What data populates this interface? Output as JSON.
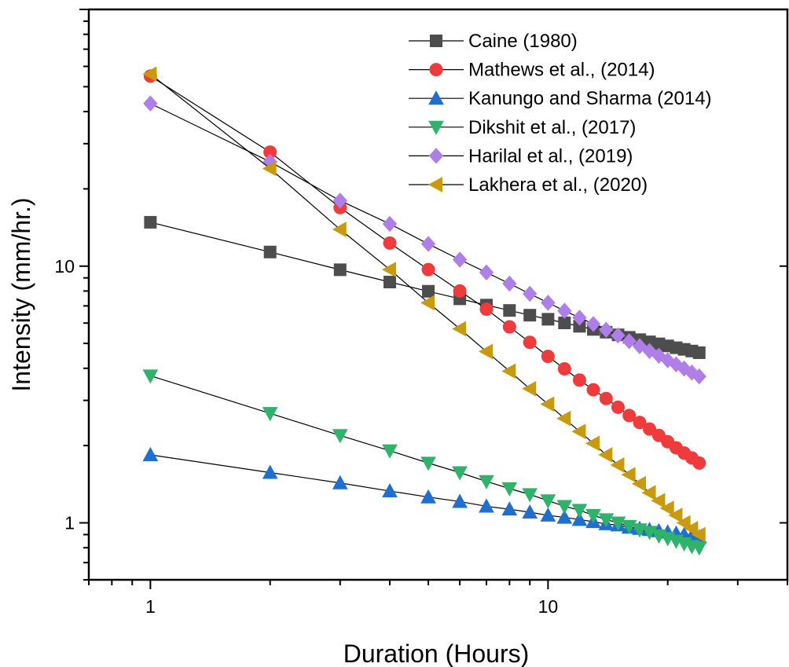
{
  "chart_data": {
    "type": "scatter",
    "xlabel": "Duration (Hours)",
    "ylabel": "Intensity (mm/hr.)",
    "xscale": "log",
    "yscale": "log",
    "xlim": [
      0.7,
      40
    ],
    "ylim": [
      0.6,
      100
    ],
    "xticks": [
      {
        "value": 1,
        "label": "1"
      },
      {
        "value": 10,
        "label": "10"
      }
    ],
    "yticks": [
      {
        "value": 1,
        "label": "1"
      },
      {
        "value": 10,
        "label": "10"
      }
    ],
    "legend_position": "top-right",
    "grid": false,
    "x": [
      1,
      2,
      3,
      4,
      5,
      6,
      7,
      8,
      9,
      10,
      11,
      12,
      13,
      14,
      15,
      16,
      17,
      18,
      19,
      20,
      21,
      22,
      23,
      24
    ],
    "series": [
      {
        "name": "Caine (1980)",
        "marker": "square",
        "color": "#4d4d4d",
        "values": [
          14.82,
          11.35,
          9.68,
          8.67,
          7.98,
          7.46,
          7.05,
          6.72,
          6.44,
          6.21,
          6.01,
          5.83,
          5.67,
          5.53,
          5.4,
          5.28,
          5.17,
          5.07,
          4.98,
          4.89,
          4.81,
          4.74,
          4.67,
          4.6
        ]
      },
      {
        "name": "Mathews et al., (2014)",
        "marker": "circle",
        "color": "#ef3b3b",
        "values": [
          55.0,
          27.8,
          16.9,
          12.3,
          9.7,
          8.0,
          6.8,
          5.8,
          5.05,
          4.45,
          3.98,
          3.6,
          3.3,
          3.05,
          2.82,
          2.62,
          2.46,
          2.32,
          2.19,
          2.07,
          1.96,
          1.87,
          1.79,
          1.71
        ]
      },
      {
        "name": "Kanungo and Sharma (2014)",
        "marker": "triangle-up",
        "color": "#1f6fd0",
        "values": [
          1.84,
          1.57,
          1.43,
          1.33,
          1.26,
          1.21,
          1.16,
          1.13,
          1.1,
          1.07,
          1.05,
          1.03,
          1.01,
          0.99,
          0.98,
          0.96,
          0.95,
          0.94,
          0.93,
          0.92,
          0.91,
          0.9,
          0.89,
          0.88
        ]
      },
      {
        "name": "Dikshit et al., (2017)",
        "marker": "triangle-down",
        "color": "#2fb36b",
        "values": [
          3.74,
          2.67,
          2.19,
          1.91,
          1.71,
          1.57,
          1.45,
          1.36,
          1.29,
          1.22,
          1.16,
          1.12,
          1.07,
          1.03,
          1.0,
          0.97,
          0.94,
          0.92,
          0.89,
          0.87,
          0.85,
          0.83,
          0.81,
          0.8
        ]
      },
      {
        "name": "Harilal et al., (2019)",
        "marker": "diamond",
        "color": "#b07ee8",
        "values": [
          43.0,
          25.5,
          18.0,
          14.6,
          12.2,
          10.6,
          9.45,
          8.55,
          7.8,
          7.2,
          6.7,
          6.3,
          5.95,
          5.65,
          5.37,
          5.1,
          4.88,
          4.67,
          4.48,
          4.3,
          4.14,
          3.99,
          3.85,
          3.72
        ]
      },
      {
        "name": "Lakhera et al., (2020)",
        "marker": "triangle-left",
        "color": "#c9990e",
        "values": [
          56.0,
          24.0,
          13.9,
          9.7,
          7.2,
          5.7,
          4.65,
          3.9,
          3.33,
          2.9,
          2.55,
          2.27,
          2.04,
          1.84,
          1.68,
          1.54,
          1.42,
          1.31,
          1.22,
          1.14,
          1.07,
          1.0,
          0.95,
          0.9
        ]
      }
    ]
  }
}
